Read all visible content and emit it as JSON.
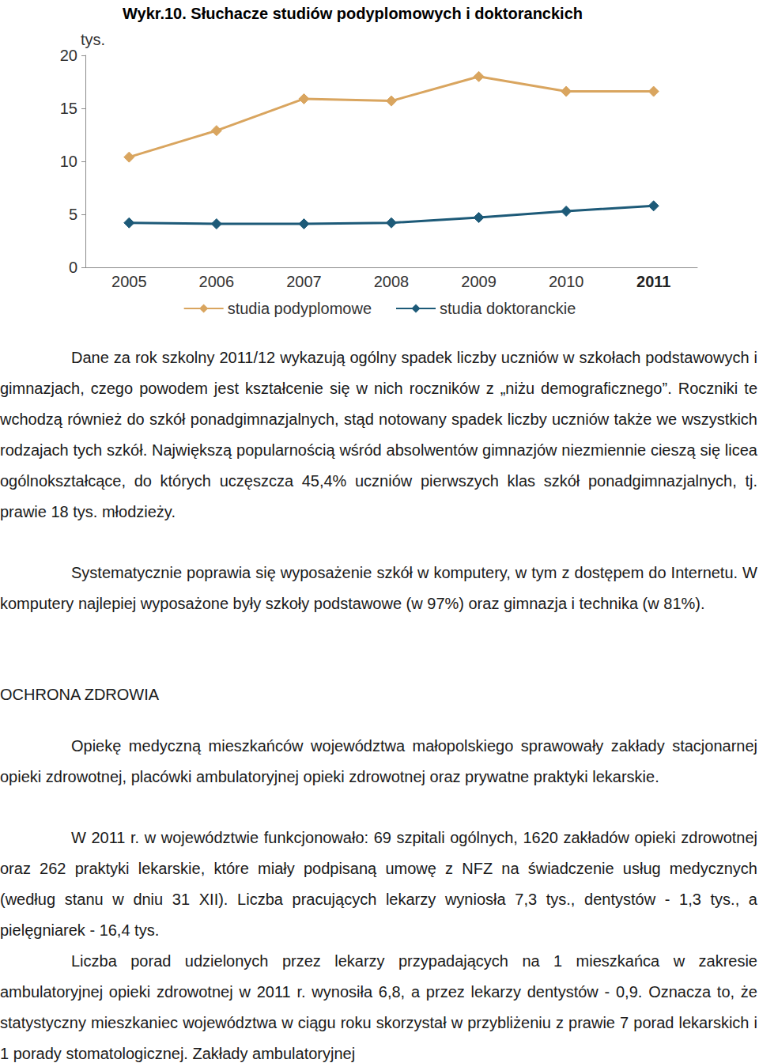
{
  "chart_data": {
    "type": "line",
    "title": "Wykr.10. Słuchacze studiów podyplomowych i doktoranckich",
    "y_label": "tys.",
    "categories": [
      "2005",
      "2006",
      "2007",
      "2008",
      "2009",
      "2010",
      "2011"
    ],
    "series": [
      {
        "name": "studia podyplomowe",
        "color": "#d9a55f",
        "marker": "diamond",
        "line_style": "solid",
        "values": [
          10.4,
          12.9,
          15.9,
          15.7,
          18.0,
          16.6,
          16.6
        ]
      },
      {
        "name": "studia doktoranckie",
        "color": "#1d5a78",
        "marker": "diamond",
        "line_style": "solid",
        "values": [
          4.2,
          4.1,
          4.1,
          4.2,
          4.7,
          5.3,
          5.8
        ]
      }
    ],
    "ylim": [
      0,
      20
    ],
    "yticks": [
      0,
      5,
      10,
      15,
      20
    ],
    "grid": false,
    "legend": "bottom"
  },
  "document": {
    "blocks": [
      {
        "type": "paragraph",
        "text": "Dane za rok szkolny 2011/12 wykazują ogólny spadek liczby uczniów w szkołach podstawowych i gimnazjach, czego powodem jest kształcenie się w nich roczników z „niżu demograficznego”. Roczniki te wchodzą również do szkół ponadgimnazjalnych, stąd notowany spadek liczby uczniów także we wszystkich rodzajach tych szkół. Największą popularnością wśród absolwentów gimnazjów niezmiennie cieszą się licea ogólnokształcące, do których uczęszcza 45,4% uczniów pierwszych klas szkół ponadgimnazjalnych, tj. prawie 18 tys. młodzieży."
      },
      {
        "type": "paragraph",
        "text": "Systematycznie poprawia się wyposażenie szkół w komputery, w tym z dostępem do Internetu. W komputery najlepiej wyposażone były szkoły podstawowe (w 97%) oraz gimnazja i technika (w 81%)."
      },
      {
        "type": "heading",
        "text": "OCHRONA ZDROWIA"
      },
      {
        "type": "paragraph",
        "text": "Opiekę medyczną mieszkańców województwa małopolskiego sprawowały zakłady stacjonarnej opieki zdrowotnej, placówki ambulatoryjnej opieki zdrowotnej oraz prywatne praktyki lekarskie."
      },
      {
        "type": "paragraph",
        "text": "W 2011 r. w województwie funkcjonowało: 69 szpitali ogólnych, 1620 zakładów opieki zdrowotnej oraz 262 praktyki lekarskie, które miały podpisaną umowę z NFZ na świadczenie usług medycznych (według stanu w dniu 31 XII). Liczba pracujących lekarzy wyniosła 7,3 tys., dentystów - 1,3 tys., a pielęgniarek - 16,4 tys."
      },
      {
        "type": "paragraph",
        "text": "Liczba porad udzielonych przez lekarzy przypadających na 1 mieszkańca w zakresie ambulatoryjnej opieki zdrowotnej w 2011 r. wynosiła 6,8, a przez lekarzy dentystów - 0,9. Oznacza to, że statystyczny mieszkaniec województwa w ciągu roku skorzystał w przybliżeniu z prawie 7 porad lekarskich i 1 porady stomatologicznej. Zakłady ambulatoryjnej"
      }
    ]
  }
}
